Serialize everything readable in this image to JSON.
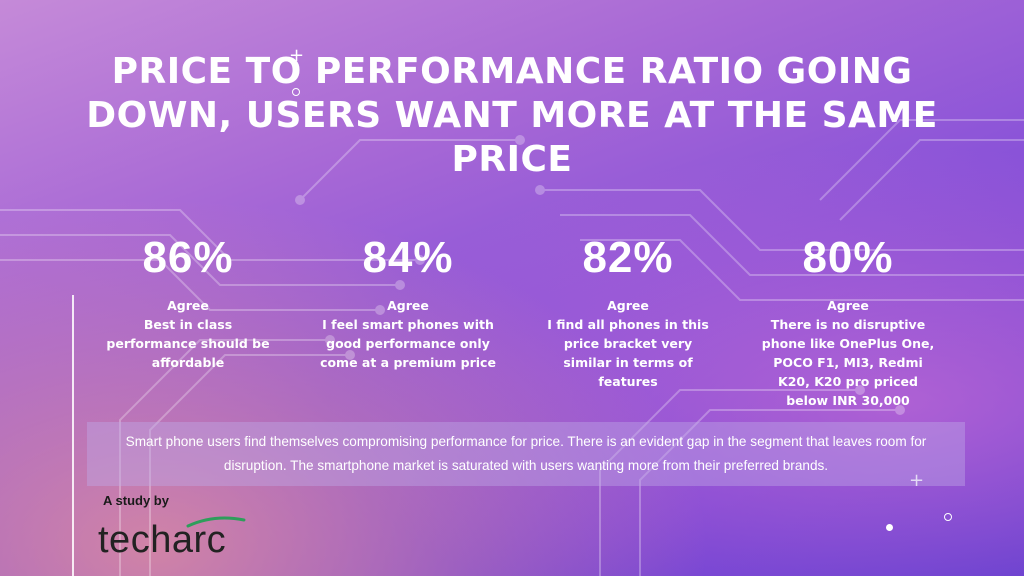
{
  "title": "PRICE TO PERFORMANCE RATIO GOING DOWN, USERS WANT MORE AT THE SAME PRICE",
  "stats": [
    {
      "value": "86%",
      "label": "Agree",
      "description": "Best in class performance should be affordable"
    },
    {
      "value": "84%",
      "label": "Agree",
      "description": "I feel smart phones with good performance only come at a premium price"
    },
    {
      "value": "82%",
      "label": "Agree",
      "description": "I find all phones in this price bracket very similar in terms of features"
    },
    {
      "value": "80%",
      "label": "Agree",
      "description": "There is no disruptive phone like OnePlus One, POCO F1, MI3, Redmi K20, K20 pro priced below INR 30,000"
    }
  ],
  "summary": "Smart phone users find themselves compromising performance for price. There is an evident gap in the segment that leaves room for disruption. The smartphone market is saturated with users wanting more from their preferred brands.",
  "footer": {
    "study_by": "A study by",
    "logo_text": "techarc"
  },
  "colors": {
    "background_top": "#a768d6",
    "background_bottom": "#5a3ad0",
    "accent_warm": "#eb9696",
    "text": "#ffffff",
    "logo_swoosh": "#2e9e5b"
  },
  "icons": [
    "plus-icon",
    "circle-icon",
    "dot-icon"
  ]
}
